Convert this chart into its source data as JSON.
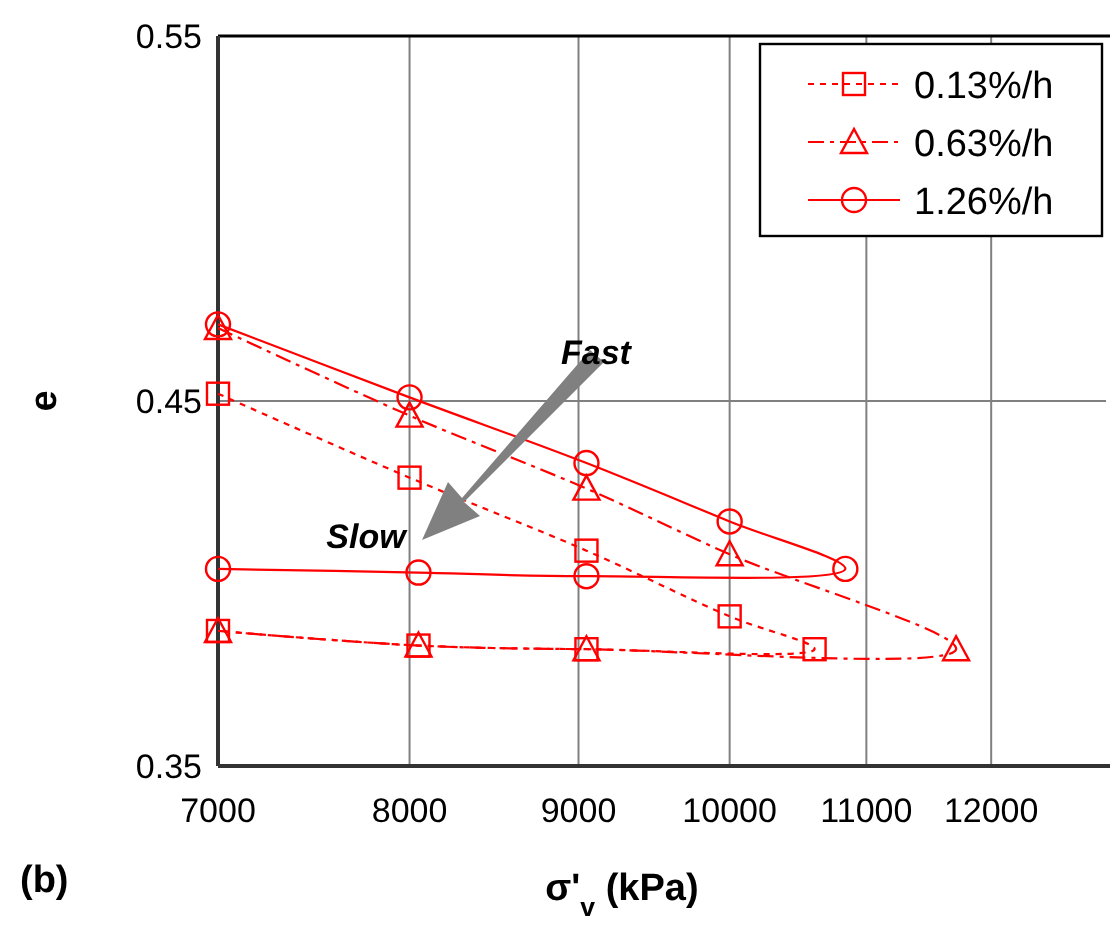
{
  "chart_data": {
    "type": "line",
    "xlabel": "σ'$_{v}$ (kPa)",
    "ylabel": "e",
    "log": "x",
    "xlim": [
      7000,
      13000
    ],
    "xticks": [
      7000,
      8000,
      9000,
      10000,
      11000,
      12000
    ],
    "ylim": [
      0.35,
      0.55
    ],
    "yticks": [
      0.35,
      0.45,
      0.55
    ],
    "grid": true,
    "legend": "top right",
    "annotations": [
      "Fast",
      "Slow",
      "(b)"
    ],
    "series": [
      {
        "name": "0.13%/h",
        "color": "#ff0000",
        "marker": "square",
        "line_style": "dotted",
        "x": [
          7000,
          8000,
          9050,
          10000,
          10610,
          9050,
          8050,
          7000
        ],
        "values": [
          0.452,
          0.429,
          0.409,
          0.391,
          0.382,
          0.382,
          0.383,
          0.387
        ]
      },
      {
        "name": "0.63%/h",
        "color": "#ff0000",
        "marker": "triangle",
        "line_style": "dashdot",
        "x": [
          7000,
          8000,
          9050,
          10000,
          11710,
          9050,
          8050,
          7000
        ],
        "values": [
          0.47,
          0.446,
          0.426,
          0.408,
          0.382,
          0.382,
          0.383,
          0.387
        ]
      },
      {
        "name": "1.26%/h",
        "color": "#ff0000",
        "marker": "circle",
        "line_style": "solid",
        "x": [
          7000,
          8000,
          9050,
          10000,
          10840,
          9050,
          8050,
          7000
        ],
        "values": [
          0.471,
          0.451,
          0.433,
          0.417,
          0.404,
          0.402,
          0.403,
          0.404
        ]
      }
    ]
  }
}
